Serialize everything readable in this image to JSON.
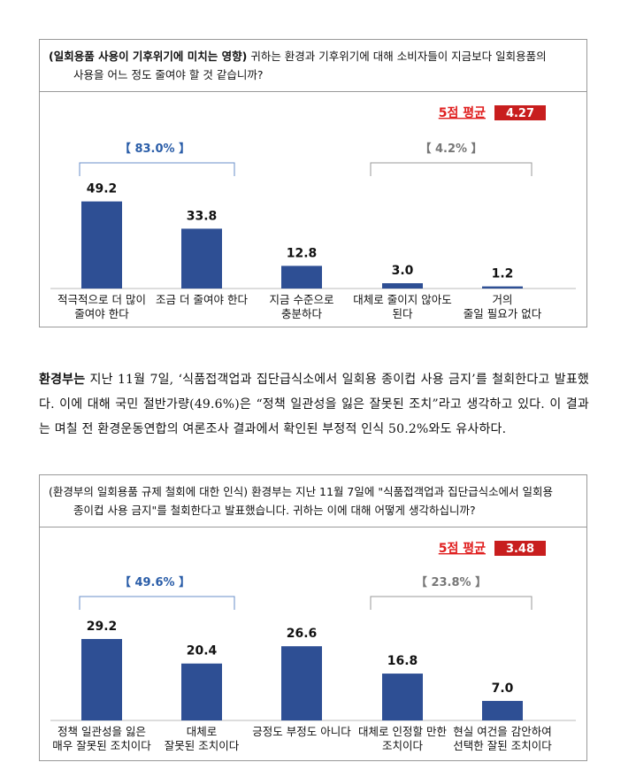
{
  "chart1": {
    "header_prefix": "(일회용품 사용이 기후위기에 미치는 영향)",
    "header_line1": " 귀하는 환경과 기후위기에 대해 소비자들이 지금보다 일회용품의",
    "header_line2": "사용을 어느 정도 줄여야 할 것 같습니까?",
    "avg_label": "5점 평균",
    "avg_value": "4.27",
    "group_left": "【 83.0% 】",
    "group_right": "【 4.2% 】"
  },
  "chart2": {
    "header_line1": "(환경부의 일회용품 규제 철회에 대한 인식) 환경부는 지난 11월 7일에 \"식품접객업과 집단급식소에서 일회용",
    "header_line2": "종이컵 사용 금지\"를 철회한다고 발표했습니다. 귀하는 이에 대해 어떻게 생각하십니까?",
    "avg_label": "5점 평균",
    "avg_value": "3.48",
    "group_left": "【 49.6% 】",
    "group_right": "【 23.8% 】"
  },
  "body": {
    "lead": "환경부는",
    "text": " 지난 11월 7일, ‘식품접객업과 집단급식소에서 일회용 종이컵 사용 금지’를 철회한다고 발표했다. 이에 대해 국민 절반가량(49.6%)은 “정책 일관성을 잃은 잘못된 조치”라고 생각하고 있다. 이 결과는 며칠 전 환경운동연합의 여론조사 결과에서 확인된 부정적 인식 50.2%와도 유사하다."
  },
  "colors": {
    "bar": "#2e4f94",
    "accent_red": "#e02020",
    "avg_box": "#c81e1e",
    "bracket_blue": "#6a8fc8",
    "bracket_gray": "#999999"
  },
  "chart_data": [
    {
      "type": "bar",
      "categories": [
        [
          "적극적으로 더 많이",
          "줄여야 한다"
        ],
        [
          "조금 더 줄여야 한다"
        ],
        [
          "지금 수준으로",
          "충분하다"
        ],
        [
          "대체로 줄이지 않아도",
          "된다"
        ],
        [
          "거의",
          "줄일 필요가 없다"
        ]
      ],
      "values": [
        49.2,
        33.8,
        12.8,
        3.0,
        1.2
      ],
      "labels": [
        "49.2",
        "33.8",
        "12.8",
        "3.0",
        "1.2"
      ],
      "ylim": [
        0,
        55
      ]
    },
    {
      "type": "bar",
      "categories": [
        [
          "정책 일관성을 잃은",
          "매우 잘못된 조치이다"
        ],
        [
          "대체로",
          "잘못된 조치이다"
        ],
        [
          "긍정도 부정도 아니다"
        ],
        [
          "대체로 인정할 만한",
          "조치이다"
        ],
        [
          "현실 여건을 감안하여",
          "선택한 잘된 조치이다"
        ]
      ],
      "values": [
        29.2,
        20.4,
        26.6,
        16.8,
        7.0
      ],
      "labels": [
        "29.2",
        "20.4",
        "26.6",
        "16.8",
        "7.0"
      ],
      "ylim": [
        0,
        33
      ]
    }
  ]
}
